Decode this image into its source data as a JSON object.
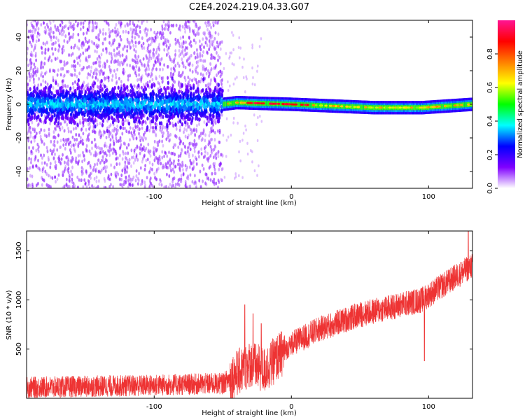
{
  "title": "C2E4.2024.219.04.33.G07",
  "chart_data": [
    {
      "type": "heatmap",
      "xlabel": "Height of straight line (km)",
      "ylabel": "Frequency (Hz)",
      "xlim": [
        -193,
        132
      ],
      "ylim": [
        -50,
        50
      ],
      "xticks": [
        -100,
        0,
        100
      ],
      "yticks": [
        -40,
        -20,
        0,
        20,
        40
      ],
      "colorbar": {
        "label": "Normalized spectral amplitude",
        "range": [
          0,
          1
        ],
        "ticks": [
          "0.0",
          "0.2",
          "0.4",
          "0.6",
          "0.8"
        ],
        "colormap": [
          "#ffffff",
          "#8000ff",
          "#0000ff",
          "#00ffff",
          "#00ff00",
          "#ffff00",
          "#ff8000",
          "#ff0000",
          "#ff1493"
        ]
      },
      "grid": false,
      "description_of_signal": {
        "scatter_region_x": [
          -193,
          -50
        ],
        "scatter_freq_spread": 50,
        "band_center_by_x": [
          [
            -193,
            0
          ],
          [
            -50,
            0
          ],
          [
            -40,
            1
          ],
          [
            0,
            0
          ],
          [
            60,
            -2
          ],
          [
            95,
            -2
          ],
          [
            132,
            0
          ]
        ],
        "peak_x": [
          -20,
          0
        ]
      }
    },
    {
      "type": "line",
      "xlabel": "Height of straight line (km)",
      "ylabel": "SNR (10 * v/v)",
      "xlim": [
        -193,
        132
      ],
      "ylim": [
        0,
        1700
      ],
      "xticks": [
        -100,
        0,
        100
      ],
      "yticks": [
        500,
        1000,
        1500
      ],
      "color": "#ee3333",
      "grid": false,
      "series": [
        {
          "trend": [
            [
              -193,
              110
            ],
            [
              -110,
              130
            ],
            [
              -50,
              150
            ],
            [
              -40,
              250
            ],
            [
              -30,
              350
            ],
            [
              -20,
              280
            ],
            [
              0,
              550
            ],
            [
              20,
              700
            ],
            [
              50,
              850
            ],
            [
              80,
              950
            ],
            [
              95,
              1000
            ],
            [
              100,
              1050
            ],
            [
              132,
              1350
            ]
          ],
          "noise_amplitude": 110,
          "spikes": [
            [
              -34,
              950
            ],
            [
              -28,
              860
            ],
            [
              -22,
              760
            ],
            [
              97,
              380
            ],
            [
              129,
              1700
            ]
          ]
        }
      ]
    }
  ]
}
